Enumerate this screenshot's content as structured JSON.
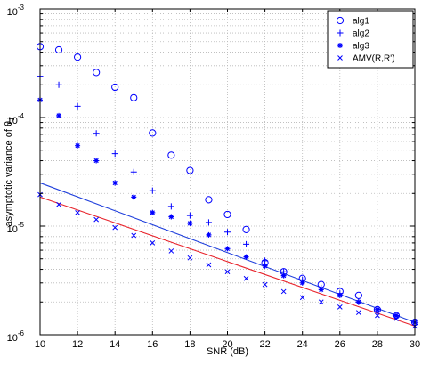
{
  "chart_data": {
    "type": "scatter",
    "xlabel": "SNR (dB)",
    "ylabel": {
      "prefix": "asymptotic variance of θ",
      "subscript": "1"
    },
    "xlim": [
      10,
      30
    ],
    "ylim": [
      1e-06,
      0.001
    ],
    "yscale": "log",
    "grid": true,
    "legend_position": "top-right",
    "x_ticks": [
      10,
      12,
      14,
      16,
      18,
      20,
      22,
      24,
      26,
      28,
      30
    ],
    "y_ticks": [
      {
        "value": 0.001,
        "base": "10",
        "exp": "-3"
      },
      {
        "value": 0.0001,
        "base": "10",
        "exp": "-4"
      },
      {
        "value": 1e-05,
        "base": "10",
        "exp": "-5"
      },
      {
        "value": 1e-06,
        "base": "10",
        "exp": "-6"
      }
    ],
    "series": [
      {
        "name": "alg1",
        "marker": "circle",
        "color": "#0000ff",
        "x": [
          10,
          11,
          12,
          13,
          14,
          15,
          16,
          17,
          18,
          19,
          20,
          21,
          22,
          23,
          24,
          25,
          26,
          27,
          28,
          29,
          30
        ],
        "y": [
          0.00045,
          0.00042,
          0.00036,
          0.00026,
          0.00019,
          0.000152,
          7.2e-05,
          4.5e-05,
          3.25e-05,
          1.75e-05,
          1.28e-05,
          9.3e-06,
          4.6e-06,
          3.8e-06,
          3.3e-06,
          2.9e-06,
          2.5e-06,
          2.3e-06,
          1.7e-06,
          1.5e-06,
          1.3e-06
        ]
      },
      {
        "name": "alg2",
        "marker": "plus",
        "color": "#0000ff",
        "x": [
          10,
          11,
          12,
          13,
          14,
          15,
          16,
          17,
          18,
          19,
          20,
          21,
          22,
          23,
          24,
          25,
          26,
          27,
          28,
          29,
          30
        ],
        "y": [
          0.00024,
          0.0002,
          0.000127,
          7.15e-05,
          4.65e-05,
          3.15e-05,
          2.12e-05,
          1.52e-05,
          1.25e-05,
          1.08e-05,
          8.8e-06,
          6.8e-06,
          4.8e-06,
          3.8e-06,
          3.2e-06,
          2.7e-06,
          2.4e-06,
          2e-06,
          1.7e-06,
          1.5e-06,
          1.3e-06
        ]
      },
      {
        "name": "alg3",
        "marker": "star",
        "color": "#0000ff",
        "x": [
          10,
          11,
          12,
          13,
          14,
          15,
          16,
          17,
          18,
          19,
          20,
          21,
          22,
          23,
          24,
          25,
          26,
          27,
          28,
          29,
          30
        ],
        "y": [
          0.000145,
          0.000104,
          5.5e-05,
          4e-05,
          2.5e-05,
          1.85e-05,
          1.33e-05,
          1.22e-05,
          1.06e-05,
          8.3e-06,
          6.2e-06,
          5.2e-06,
          4.3e-06,
          3.5e-06,
          3e-06,
          2.6e-06,
          2.3e-06,
          2e-06,
          1.7e-06,
          1.5e-06,
          1.3e-06
        ]
      },
      {
        "name": "AMV(R,R')",
        "marker": "x",
        "color": "#0000ff",
        "x": [
          10,
          11,
          12,
          13,
          14,
          15,
          16,
          17,
          18,
          19,
          20,
          21,
          22,
          23,
          24,
          25,
          26,
          27,
          28,
          29,
          30
        ],
        "y": [
          1.95e-05,
          1.58e-05,
          1.33e-05,
          1.15e-05,
          9.7e-06,
          8.2e-06,
          7e-06,
          5.9e-06,
          5.1e-06,
          4.4e-06,
          3.8e-06,
          3.3e-06,
          2.9e-06,
          2.5e-06,
          2.2e-06,
          2e-06,
          1.8e-06,
          1.6e-06,
          1.5e-06,
          1.4e-06,
          1.2e-06
        ]
      }
    ],
    "lines": [
      {
        "color": "#1f3fdc",
        "x": [
          10,
          30
        ],
        "y": [
          2.5e-05,
          1.3e-06
        ]
      },
      {
        "color": "#e8242c",
        "x": [
          10,
          30
        ],
        "y": [
          1.85e-05,
          1.2e-06
        ]
      }
    ]
  }
}
